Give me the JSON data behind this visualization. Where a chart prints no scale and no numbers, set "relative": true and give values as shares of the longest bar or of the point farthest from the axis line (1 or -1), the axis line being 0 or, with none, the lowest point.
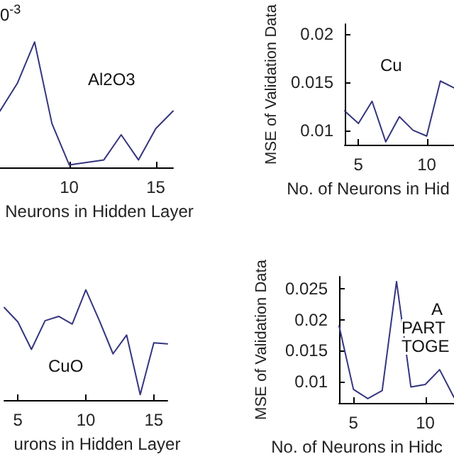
{
  "chart_data": [
    {
      "type": "line",
      "x": [
        6,
        7,
        8,
        9,
        10,
        11,
        12,
        13,
        14,
        15,
        16
      ],
      "values": [
        0.45,
        0.67,
        1,
        0.35,
        0.02,
        0.04,
        0.06,
        0.26,
        0.06,
        0.31,
        0.45
      ],
      "relative": true,
      "color": "#35357f",
      "xlim": [
        6,
        16
      ],
      "xticks": [
        10,
        15
      ],
      "xlabel": "Neurons in Hidden Layer",
      "annotations": [
        "0$^{-3}$",
        "Al2O3"
      ],
      "grid": false,
      "marker": "none"
    },
    {
      "type": "line",
      "x": [
        4,
        5,
        6,
        7,
        8,
        9,
        10,
        11,
        12
      ],
      "values": [
        0.012,
        0.0107,
        0.013,
        0.0088,
        0.0114,
        0.01,
        0.0094,
        0.0151,
        0.0144
      ],
      "color": "#35357f",
      "xlim": [
        4,
        12
      ],
      "xticks": [
        5,
        10
      ],
      "ylim": [
        0.0085,
        0.021
      ],
      "yticks": [
        0.01,
        0.015,
        0.02
      ],
      "xlabel": "No. of Neurons in Hid",
      "ylabel": "MSE of Validation Data",
      "annotations": [
        "Cu"
      ],
      "grid": false,
      "marker": "none"
    },
    {
      "type": "line",
      "x": [
        4,
        5,
        6,
        7,
        8,
        9,
        10,
        11,
        12,
        13,
        14,
        15,
        16
      ],
      "values": [
        0.84,
        0.71,
        0.46,
        0.72,
        0.76,
        0.69,
        1,
        0.72,
        0.42,
        0.59,
        0.05,
        0.52,
        0.51
      ],
      "relative": true,
      "color": "#35357f",
      "xlim": [
        4,
        16
      ],
      "xticks": [
        5,
        10,
        15
      ],
      "xlabel": "urons in Hidden Layer",
      "annotations": [
        "CuO"
      ],
      "grid": false,
      "marker": "none"
    },
    {
      "type": "line",
      "x": [
        4,
        5,
        6,
        7,
        8,
        9,
        10,
        11,
        12
      ],
      "values": [
        0.019,
        0.0087,
        0.0072,
        0.0085,
        0.0262,
        0.0091,
        0.0095,
        0.0119,
        0.0074
      ],
      "color": "#35357f",
      "xlim": [
        4,
        12
      ],
      "xticks": [
        5,
        10
      ],
      "ylim": [
        0.0065,
        0.027
      ],
      "yticks": [
        0.01,
        0.015,
        0.02,
        0.025
      ],
      "xlabel": "No. of Neurons in Hidc",
      "ylabel": "MSE of Validation Data",
      "annotations": [
        "A",
        "PART",
        "TOGE"
      ],
      "grid": false,
      "marker": "none"
    }
  ]
}
